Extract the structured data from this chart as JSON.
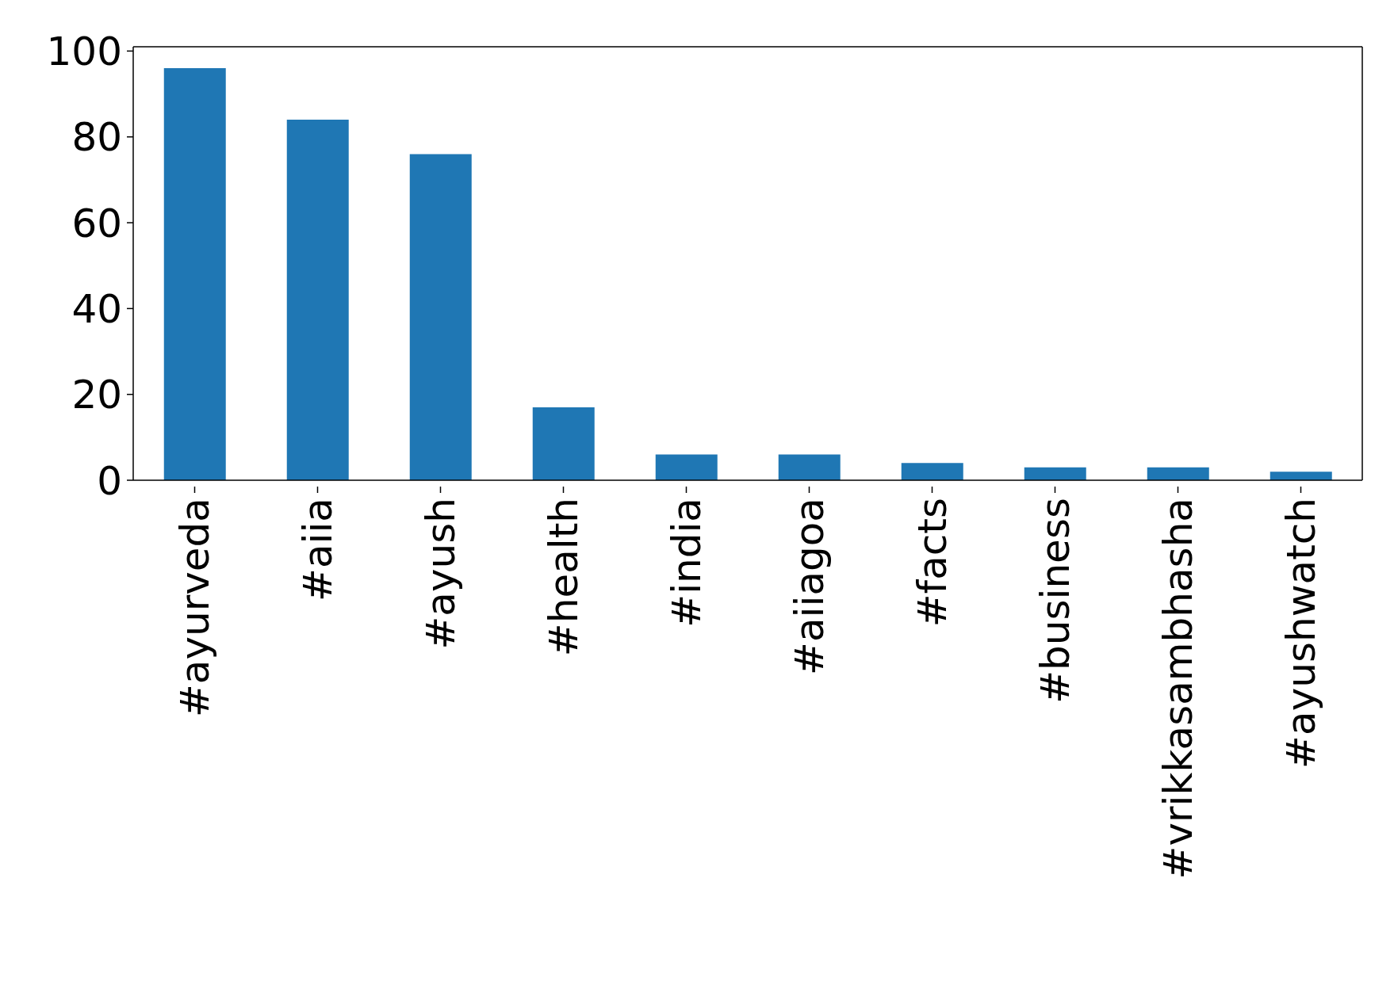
{
  "chart_data": {
    "type": "bar",
    "categories": [
      "#ayurveda",
      "#aiia",
      "#ayush",
      "#health",
      "#india",
      "#aiiagoa",
      "#facts",
      "#business",
      "#vrikkasambhasha",
      "#ayushwatch"
    ],
    "values": [
      96,
      84,
      76,
      17,
      6,
      6,
      4,
      3,
      3,
      2
    ],
    "color": "#1f77b4",
    "ylim": [
      0,
      101
    ],
    "yticks": [
      0,
      20,
      40,
      60,
      80,
      100
    ],
    "grid": false,
    "legend": false
  }
}
